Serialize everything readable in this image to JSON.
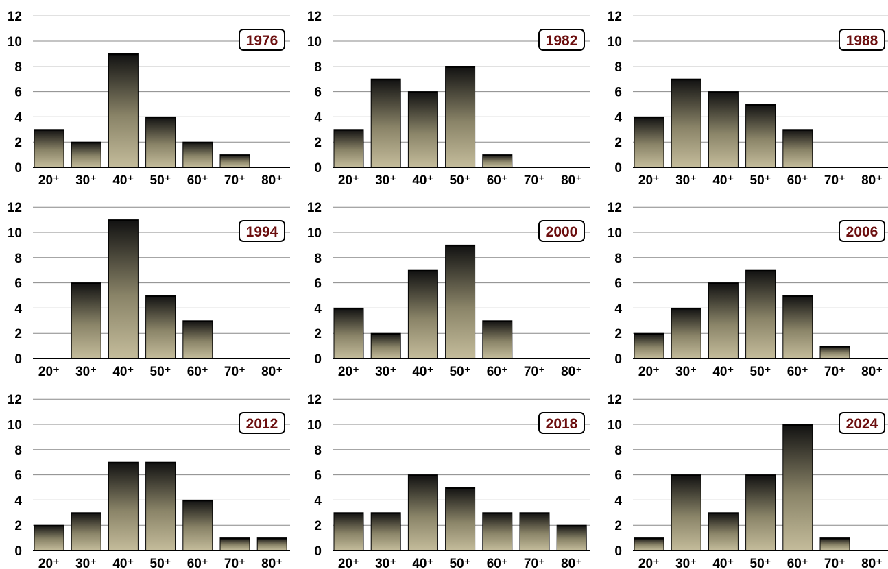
{
  "colors": {
    "bar_top": "#111111",
    "bar_bottom": "#c4bc9b",
    "year_text": "#6b0d0d",
    "gridline": "#888888"
  },
  "chart_data": [
    {
      "type": "bar",
      "label": "1976",
      "categories": [
        "20⁺",
        "30⁺",
        "40⁺",
        "50⁺",
        "60⁺",
        "70⁺",
        "80⁺"
      ],
      "values": [
        3,
        2,
        9,
        4,
        2,
        1,
        0
      ],
      "ylim": [
        0,
        12
      ],
      "yticks": [
        0,
        2,
        4,
        6,
        8,
        10,
        12
      ],
      "grid": true
    },
    {
      "type": "bar",
      "label": "1982",
      "categories": [
        "20⁺",
        "30⁺",
        "40⁺",
        "50⁺",
        "60⁺",
        "70⁺",
        "80⁺"
      ],
      "values": [
        3,
        7,
        6,
        8,
        1,
        0,
        0
      ],
      "ylim": [
        0,
        12
      ],
      "yticks": [
        0,
        2,
        4,
        6,
        8,
        10,
        12
      ],
      "grid": true
    },
    {
      "type": "bar",
      "label": "1988",
      "categories": [
        "20⁺",
        "30⁺",
        "40⁺",
        "50⁺",
        "60⁺",
        "70⁺",
        "80⁺"
      ],
      "values": [
        4,
        7,
        6,
        5,
        3,
        0,
        0
      ],
      "ylim": [
        0,
        12
      ],
      "yticks": [
        0,
        2,
        4,
        6,
        8,
        10,
        12
      ],
      "grid": true
    },
    {
      "type": "bar",
      "label": "1994",
      "categories": [
        "20⁺",
        "30⁺",
        "40⁺",
        "50⁺",
        "60⁺",
        "70⁺",
        "80⁺"
      ],
      "values": [
        0,
        6,
        11,
        5,
        3,
        0,
        0
      ],
      "ylim": [
        0,
        12
      ],
      "yticks": [
        0,
        2,
        4,
        6,
        8,
        10,
        12
      ],
      "grid": true
    },
    {
      "type": "bar",
      "label": "2000",
      "categories": [
        "20⁺",
        "30⁺",
        "40⁺",
        "50⁺",
        "60⁺",
        "70⁺",
        "80⁺"
      ],
      "values": [
        4,
        2,
        7,
        9,
        3,
        0,
        0
      ],
      "ylim": [
        0,
        12
      ],
      "yticks": [
        0,
        2,
        4,
        6,
        8,
        10,
        12
      ],
      "grid": true
    },
    {
      "type": "bar",
      "label": "2006",
      "categories": [
        "20⁺",
        "30⁺",
        "40⁺",
        "50⁺",
        "60⁺",
        "70⁺",
        "80⁺"
      ],
      "values": [
        2,
        4,
        6,
        7,
        5,
        1,
        0
      ],
      "ylim": [
        0,
        12
      ],
      "yticks": [
        0,
        2,
        4,
        6,
        8,
        10,
        12
      ],
      "grid": true
    },
    {
      "type": "bar",
      "label": "2012",
      "categories": [
        "20⁺",
        "30⁺",
        "40⁺",
        "50⁺",
        "60⁺",
        "70⁺",
        "80⁺"
      ],
      "values": [
        2,
        3,
        7,
        7,
        4,
        1,
        1
      ],
      "ylim": [
        0,
        12
      ],
      "yticks": [
        0,
        2,
        4,
        6,
        8,
        10,
        12
      ],
      "grid": true
    },
    {
      "type": "bar",
      "label": "2018",
      "categories": [
        "20⁺",
        "30⁺",
        "40⁺",
        "50⁺",
        "60⁺",
        "70⁺",
        "80⁺"
      ],
      "values": [
        3,
        3,
        6,
        5,
        3,
        3,
        2
      ],
      "ylim": [
        0,
        12
      ],
      "yticks": [
        0,
        2,
        4,
        6,
        8,
        10,
        12
      ],
      "grid": true
    },
    {
      "type": "bar",
      "label": "2024",
      "categories": [
        "20⁺",
        "30⁺",
        "40⁺",
        "50⁺",
        "60⁺",
        "70⁺",
        "80⁺"
      ],
      "values": [
        1,
        6,
        3,
        6,
        10,
        1,
        0
      ],
      "ylim": [
        0,
        12
      ],
      "yticks": [
        0,
        2,
        4,
        6,
        8,
        10,
        12
      ],
      "grid": true
    }
  ]
}
